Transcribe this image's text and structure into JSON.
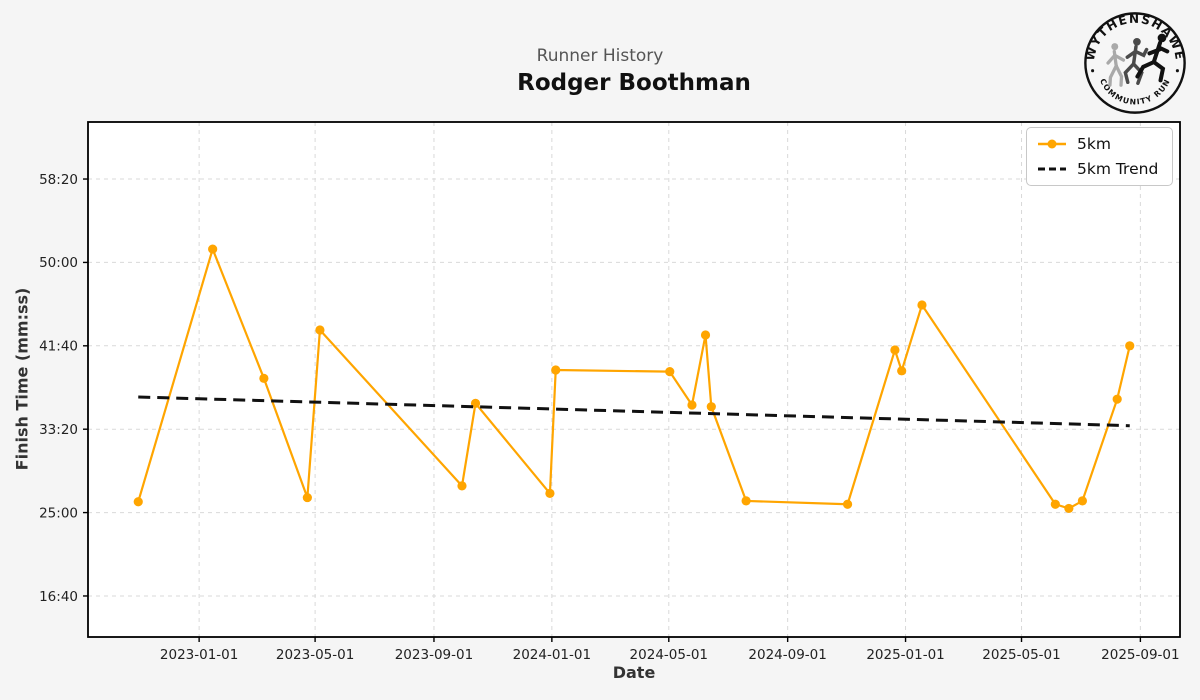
{
  "header": {
    "subtitle": "Runner History",
    "title": "Rodger Boothman"
  },
  "logo": {
    "top_text": "WYTHENSHAWE",
    "bottom_text": "COMMUNITY RUN"
  },
  "axes": {
    "xlabel": "Date",
    "ylabel": "Finish Time (mm:ss)"
  },
  "legend": {
    "items": [
      {
        "label": "5km",
        "color": "#FFA500",
        "style": "solid-with-marker"
      },
      {
        "label": "5km Trend",
        "color": "#111111",
        "style": "dashed"
      }
    ]
  },
  "chart_data": {
    "type": "line",
    "title": "Rodger Boothman",
    "subtitle": "Runner History",
    "xlabel": "Date",
    "ylabel": "Finish Time (mm:ss)",
    "grid": true,
    "legend_position": "top-right",
    "x_ticks": [
      "2023-01-01",
      "2023-05-01",
      "2023-09-01",
      "2024-01-01",
      "2024-05-01",
      "2024-09-01",
      "2025-01-01",
      "2025-05-01",
      "2025-09-01"
    ],
    "y_ticks": [
      "16:40",
      "25:00",
      "33:20",
      "41:40",
      "50:00",
      "58:20"
    ],
    "x_domain": [
      "2022-09-08",
      "2025-10-12"
    ],
    "y_domain_seconds": [
      754,
      3842
    ],
    "colors": {
      "grid": "#d9d9d9",
      "spine": "#000000",
      "tick_label": "#222222"
    },
    "series": [
      {
        "name": "5km",
        "color": "#FFA500",
        "marker": "circle",
        "points": [
          [
            "2022-10-30",
            "26:05"
          ],
          [
            "2023-01-15",
            "51:20"
          ],
          [
            "2023-03-09",
            "38:25"
          ],
          [
            "2023-04-23",
            "26:30"
          ],
          [
            "2023-05-06",
            "43:15"
          ],
          [
            "2023-09-30",
            "27:40"
          ],
          [
            "2023-10-14",
            "35:55"
          ],
          [
            "2023-12-30",
            "26:55"
          ],
          [
            "2024-01-05",
            "39:15"
          ],
          [
            "2024-05-02",
            "39:05"
          ],
          [
            "2024-05-25",
            "35:45"
          ],
          [
            "2024-06-08",
            "42:45"
          ],
          [
            "2024-06-14",
            "35:35"
          ],
          [
            "2024-07-20",
            "26:10"
          ],
          [
            "2024-11-02",
            "25:50"
          ],
          [
            "2024-12-21",
            "41:15"
          ],
          [
            "2024-12-28",
            "39:10"
          ],
          [
            "2025-01-18",
            "45:45"
          ],
          [
            "2025-06-05",
            "25:50"
          ],
          [
            "2025-06-19",
            "25:25"
          ],
          [
            "2025-07-03",
            "26:10"
          ],
          [
            "2025-08-08",
            "36:20"
          ],
          [
            "2025-08-21",
            "41:40"
          ]
        ]
      }
    ],
    "trend": {
      "name": "5km Trend",
      "color": "#111111",
      "dashed": true,
      "points": [
        [
          "2022-10-30",
          "36:33"
        ],
        [
          "2025-08-21",
          "33:41"
        ]
      ]
    }
  }
}
